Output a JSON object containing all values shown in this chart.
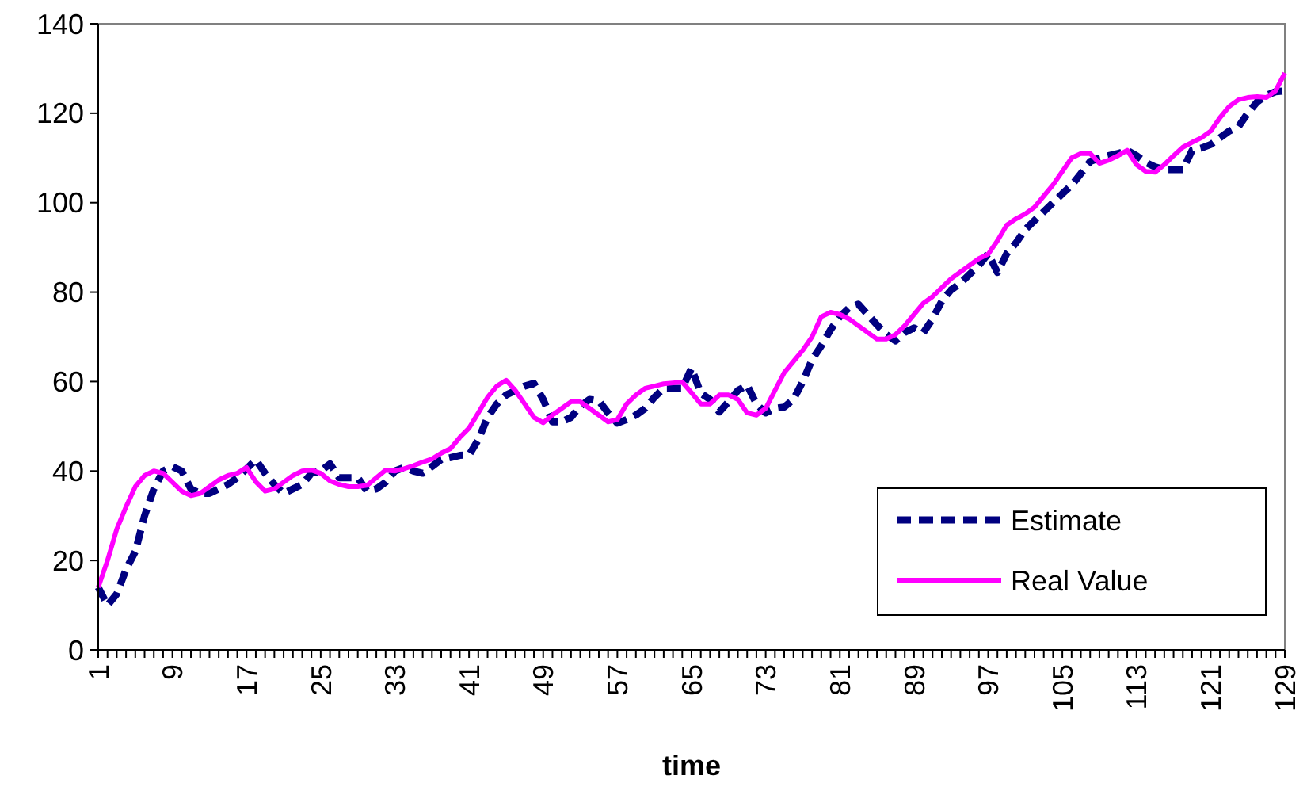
{
  "chart_data": {
    "type": "line",
    "xlabel": "time",
    "categories": [
      "1",
      null,
      null,
      null,
      null,
      null,
      null,
      null,
      "9",
      null,
      null,
      null,
      null,
      null,
      null,
      null,
      "17",
      null,
      null,
      null,
      null,
      null,
      null,
      null,
      "25",
      null,
      null,
      null,
      null,
      null,
      null,
      null,
      "33",
      null,
      null,
      null,
      null,
      null,
      null,
      null,
      "41",
      null,
      null,
      null,
      null,
      null,
      null,
      null,
      "49",
      null,
      null,
      null,
      null,
      null,
      null,
      null,
      "57",
      null,
      null,
      null,
      null,
      null,
      null,
      null,
      "65",
      null,
      null,
      null,
      null,
      null,
      null,
      null,
      "73",
      null,
      null,
      null,
      null,
      null,
      null,
      null,
      "81",
      null,
      null,
      null,
      null,
      null,
      null,
      null,
      "89",
      null,
      null,
      null,
      null,
      null,
      null,
      null,
      "97",
      null,
      null,
      null,
      null,
      null,
      null,
      null,
      "105",
      null,
      null,
      null,
      null,
      null,
      null,
      null,
      "113",
      null,
      null,
      null,
      null,
      null,
      null,
      null,
      "121",
      null,
      null,
      null,
      null,
      null,
      null,
      null,
      "129"
    ],
    "series": [
      {
        "name": "Estimate",
        "color": "#000080",
        "line_style": "dashed",
        "values": [
          14,
          10,
          12.5,
          18,
          22,
          30,
          36,
          40,
          41,
          40,
          36,
          35,
          35,
          36,
          37,
          38.5,
          40.5,
          42.5,
          39.5,
          37,
          35,
          36,
          37,
          39.5,
          40,
          41.6,
          38.5,
          38.5,
          38.5,
          35.5,
          36,
          37.5,
          40,
          40.8,
          40,
          39.5,
          41,
          42.6,
          43,
          43.5,
          43.6,
          47,
          52,
          55,
          57,
          58,
          59,
          59.6,
          56,
          51,
          51,
          52,
          54.5,
          56,
          55.7,
          53,
          50.7,
          51.5,
          52.5,
          54,
          56.5,
          58.5,
          58.5,
          58.5,
          63,
          57.4,
          56,
          53.2,
          55.5,
          58,
          59.2,
          55,
          53,
          54,
          54.3,
          56,
          60,
          64.9,
          68,
          71.6,
          74.5,
          76.5,
          77.3,
          75,
          72.7,
          70.5,
          69.1,
          71,
          72,
          70.9,
          74,
          78,
          80.5,
          82,
          84,
          86,
          88.6,
          84.4,
          88.6,
          91,
          94,
          96,
          98,
          100,
          102,
          103.9,
          106.5,
          109.2,
          110,
          110.5,
          111,
          111.7,
          110.5,
          109,
          108,
          107.4,
          107.4,
          107.4,
          111.7,
          112.2,
          113,
          114.5,
          116,
          117,
          120,
          122.5,
          124,
          124.8,
          125
        ]
      },
      {
        "name": "Real Value",
        "color": "#ff00ff",
        "line_style": "solid",
        "values": [
          14,
          20,
          27,
          32,
          36.5,
          39,
          40,
          39.5,
          37.5,
          35.5,
          34.5,
          35,
          36.5,
          38,
          39,
          39.5,
          40.8,
          37.6,
          35.5,
          36,
          37.5,
          39,
          40,
          40.2,
          39.5,
          37.8,
          37,
          36.5,
          36.5,
          36.8,
          38.5,
          40.2,
          40,
          40.5,
          41.2,
          42,
          42.7,
          44,
          45,
          47.5,
          49.6,
          53,
          56.5,
          59,
          60.3,
          58,
          55,
          52,
          50.8,
          52.5,
          54,
          55.5,
          55.5,
          54,
          52.5,
          51,
          51.5,
          55,
          57,
          58.5,
          59,
          59.5,
          59.7,
          59.9,
          57.5,
          55,
          55,
          57,
          57,
          56,
          53,
          52.5,
          54,
          58,
          62,
          64.5,
          67,
          70,
          74.5,
          75.5,
          75,
          74,
          72.5,
          71,
          69.5,
          69.5,
          70.5,
          72.5,
          75,
          77.5,
          79,
          81,
          83,
          84.5,
          86,
          87.5,
          88.5,
          91.5,
          95,
          96.4,
          97.5,
          99,
          101.5,
          104,
          107,
          110,
          111,
          111,
          108.8,
          109.5,
          110.5,
          111.7,
          108.5,
          107,
          106.8,
          108.5,
          110.5,
          112.4,
          113.5,
          114.5,
          116,
          119,
          121.5,
          123,
          123.5,
          123.7,
          123.5,
          125,
          129
        ]
      }
    ],
    "ylim": [
      0,
      140
    ],
    "yticks": [
      0,
      20,
      40,
      60,
      80,
      100,
      120,
      140
    ],
    "grid": false,
    "legend": "bottom right",
    "marker": "none"
  }
}
